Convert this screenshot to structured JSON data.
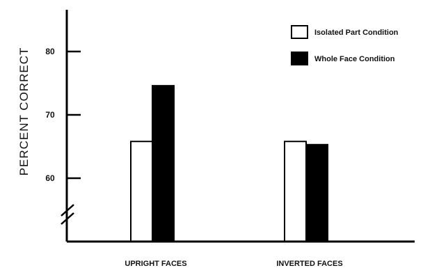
{
  "chart_data": {
    "type": "bar",
    "categories": [
      "UPRIGHT FACES",
      "INVERTED FACES"
    ],
    "series": [
      {
        "name": "Isolated Part Condition",
        "values": [
          65.8,
          65.8
        ],
        "color": "#ffffff"
      },
      {
        "name": "Whole Face Condition",
        "values": [
          74.6,
          65.3
        ],
        "color": "#000000"
      }
    ],
    "ylabel": "PERCENT CORRECT",
    "xlabel": "",
    "yticks": [
      60,
      70,
      80
    ],
    "ylim": [
      50,
      85
    ],
    "axis_break": true,
    "legend_position": "top-right"
  }
}
